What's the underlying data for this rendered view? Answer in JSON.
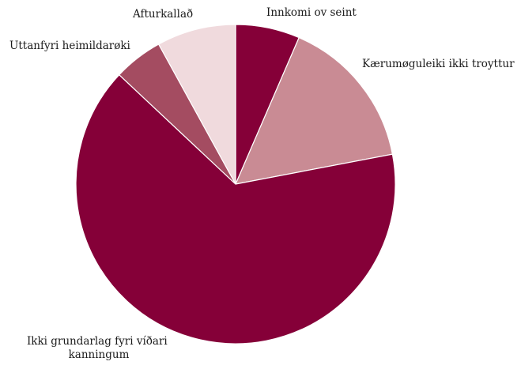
{
  "chart_data": {
    "type": "pie",
    "start_angle_deg": 0,
    "direction": "clockwise",
    "slices": [
      {
        "label": "Innkomi ov seint",
        "value": 6.5,
        "color": "#850038"
      },
      {
        "label": "Kærumøguleiki ikki troyttur",
        "value": 15.5,
        "color": "#c98b94"
      },
      {
        "label": "Ikki grundarlag fyri víðari kanningum",
        "value": 65.0,
        "color": "#850038"
      },
      {
        "label": "Uttanfyri heimildarøki",
        "value": 5.0,
        "color": "#a44c61"
      },
      {
        "label": "Afturkallað",
        "value": 8.0,
        "color": "#f0dadd"
      }
    ]
  }
}
